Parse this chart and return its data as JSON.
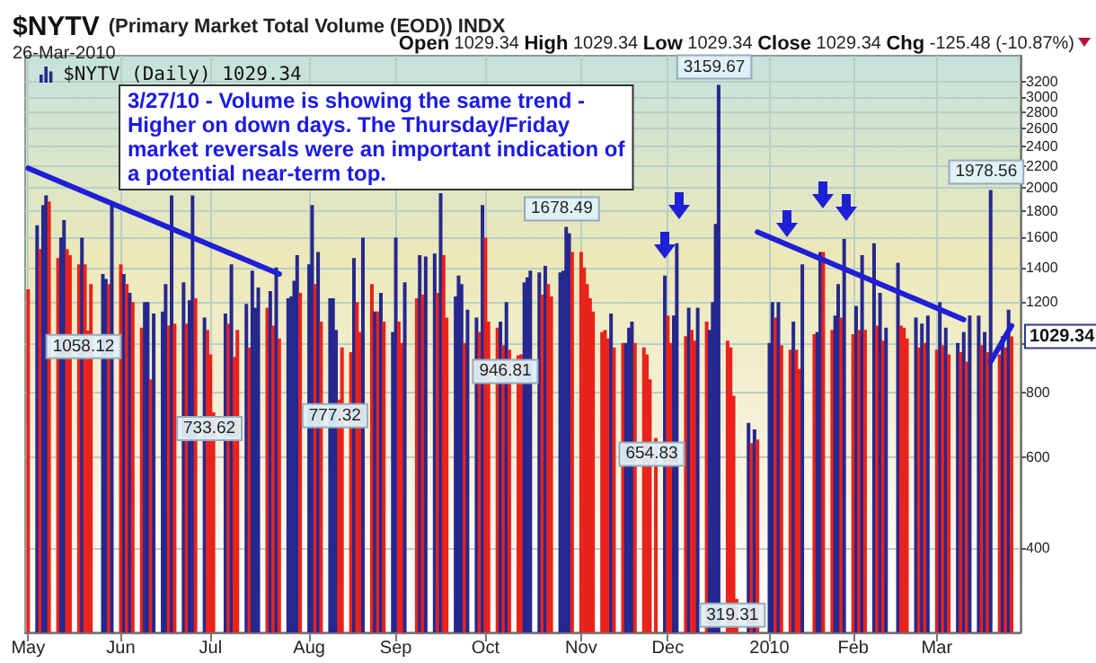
{
  "chart_data": {
    "type": "bar",
    "title": "$NYTV (Primary Market Total Volume (EOD)) INDX",
    "subtitle": "26-Mar-2010",
    "log": true,
    "grid": true,
    "legend": "top left",
    "marker": "none",
    "line_style": "solid",
    "xlim": [
      "2009-04-30",
      "2010-03-29"
    ],
    "xticks": [
      {
        "value": "2009-05-01",
        "label": "May"
      },
      {
        "value": "2009-06-01",
        "label": "Jun"
      },
      {
        "value": "2009-07-01",
        "label": "Jul"
      },
      {
        "value": "2009-08-03",
        "label": "Aug"
      },
      {
        "value": "2009-09-01",
        "label": "Sep"
      },
      {
        "value": "2009-10-01",
        "label": "Oct"
      },
      {
        "value": "2009-11-02",
        "label": "Nov"
      },
      {
        "value": "2009-12-01",
        "label": "Dec"
      },
      {
        "value": "2010-01-04",
        "label": "2010"
      },
      {
        "value": "2010-02-01",
        "label": "Feb"
      },
      {
        "value": "2010-03-01",
        "label": "Mar"
      }
    ],
    "ylim": [
      275,
      3600
    ],
    "yticks": [
      400,
      600,
      800,
      {
        "value": 1000,
        "label": null
      },
      1200,
      1400,
      1600,
      1800,
      2000,
      2200,
      2400,
      2600,
      2800,
      3000,
      3200
    ],
    "x": [
      "2009-05-01",
      "2009-05-04",
      "2009-05-05",
      "2009-05-06",
      "2009-05-07",
      "2009-05-08",
      "2009-05-11",
      "2009-05-12",
      "2009-05-13",
      "2009-05-14",
      "2009-05-15",
      "2009-05-18",
      "2009-05-19",
      "2009-05-20",
      "2009-05-21",
      "2009-05-22",
      "2009-05-26",
      "2009-05-27",
      "2009-05-28",
      "2009-05-29",
      "2009-06-01",
      "2009-06-02",
      "2009-06-03",
      "2009-06-04",
      "2009-06-05",
      "2009-06-08",
      "2009-06-09",
      "2009-06-10",
      "2009-06-11",
      "2009-06-12",
      "2009-06-15",
      "2009-06-16",
      "2009-06-17",
      "2009-06-18",
      "2009-06-19",
      "2009-06-22",
      "2009-06-23",
      "2009-06-24",
      "2009-06-25",
      "2009-06-26",
      "2009-06-29",
      "2009-06-30",
      "2009-07-01",
      "2009-07-02",
      "2009-07-06",
      "2009-07-07",
      "2009-07-08",
      "2009-07-09",
      "2009-07-10",
      "2009-07-13",
      "2009-07-14",
      "2009-07-15",
      "2009-07-16",
      "2009-07-17",
      "2009-07-20",
      "2009-07-21",
      "2009-07-22",
      "2009-07-23",
      "2009-07-24",
      "2009-07-27",
      "2009-07-28",
      "2009-07-29",
      "2009-07-30",
      "2009-07-31",
      "2009-08-03",
      "2009-08-04",
      "2009-08-05",
      "2009-08-06",
      "2009-08-07",
      "2009-08-10",
      "2009-08-11",
      "2009-08-12",
      "2009-08-13",
      "2009-08-14",
      "2009-08-17",
      "2009-08-18",
      "2009-08-19",
      "2009-08-20",
      "2009-08-21",
      "2009-08-24",
      "2009-08-25",
      "2009-08-26",
      "2009-08-27",
      "2009-08-28",
      "2009-08-31",
      "2009-09-01",
      "2009-09-02",
      "2009-09-03",
      "2009-09-04",
      "2009-09-08",
      "2009-09-09",
      "2009-09-10",
      "2009-09-11",
      "2009-09-14",
      "2009-09-15",
      "2009-09-16",
      "2009-09-17",
      "2009-09-18",
      "2009-09-21",
      "2009-09-22",
      "2009-09-23",
      "2009-09-24",
      "2009-09-25",
      "2009-09-28",
      "2009-09-29",
      "2009-09-30",
      "2009-10-01",
      "2009-10-02",
      "2009-10-05",
      "2009-10-06",
      "2009-10-07",
      "2009-10-08",
      "2009-10-09",
      "2009-10-12",
      "2009-10-13",
      "2009-10-14",
      "2009-10-15",
      "2009-10-16",
      "2009-10-19",
      "2009-10-20",
      "2009-10-21",
      "2009-10-22",
      "2009-10-23",
      "2009-10-26",
      "2009-10-27",
      "2009-10-28",
      "2009-10-29",
      "2009-10-30",
      "2009-11-02",
      "2009-11-03",
      "2009-11-04",
      "2009-11-05",
      "2009-11-06",
      "2009-11-09",
      "2009-11-10",
      "2009-11-11",
      "2009-11-12",
      "2009-11-13",
      "2009-11-16",
      "2009-11-17",
      "2009-11-18",
      "2009-11-19",
      "2009-11-20",
      "2009-11-23",
      "2009-11-24",
      "2009-11-25",
      "2009-11-27",
      "2009-11-30",
      "2009-12-01",
      "2009-12-02",
      "2009-12-03",
      "2009-12-04",
      "2009-12-07",
      "2009-12-08",
      "2009-12-09",
      "2009-12-10",
      "2009-12-11",
      "2009-12-14",
      "2009-12-15",
      "2009-12-16",
      "2009-12-17",
      "2009-12-18",
      "2009-12-21",
      "2009-12-22",
      "2009-12-23",
      "2009-12-24",
      "2009-12-28",
      "2009-12-29",
      "2009-12-30",
      "2009-12-31",
      "2010-01-04",
      "2010-01-05",
      "2010-01-06",
      "2010-01-07",
      "2010-01-08",
      "2010-01-11",
      "2010-01-12",
      "2010-01-13",
      "2010-01-14",
      "2010-01-15",
      "2010-01-19",
      "2010-01-20",
      "2010-01-21",
      "2010-01-22",
      "2010-01-25",
      "2010-01-26",
      "2010-01-27",
      "2010-01-28",
      "2010-01-29",
      "2010-02-01",
      "2010-02-02",
      "2010-02-03",
      "2010-02-04",
      "2010-02-05",
      "2010-02-08",
      "2010-02-09",
      "2010-02-10",
      "2010-02-11",
      "2010-02-12",
      "2010-02-16",
      "2010-02-17",
      "2010-02-18",
      "2010-02-19",
      "2010-02-22",
      "2010-02-23",
      "2010-02-24",
      "2010-02-25",
      "2010-02-26",
      "2010-03-01",
      "2010-03-02",
      "2010-03-03",
      "2010-03-04",
      "2010-03-05",
      "2010-03-08",
      "2010-03-09",
      "2010-03-10",
      "2010-03-11",
      "2010-03-12",
      "2010-03-15",
      "2010-03-16",
      "2010-03-17",
      "2010-03-18",
      "2010-03-19",
      "2010-03-22",
      "2010-03-23",
      "2010-03-24",
      "2010-03-25",
      "2010-03-26"
    ],
    "series": [
      {
        "name": "$NYTV (Daily) 1029.34",
        "color": "#26288f",
        "values": [
          1270,
          1690,
          1520,
          1850,
          1930,
          1880,
          1460,
          1600,
          1730,
          1520,
          1480,
          1420,
          1600,
          1420,
          1058.12,
          1300,
          1360,
          1330,
          1300,
          1850,
          1420,
          1360,
          1300,
          1250,
          1200,
          1070,
          1200,
          1200,
          850,
          1140,
          1150,
          1300,
          1080,
          1930,
          1090,
          1310,
          1090,
          1210,
          1930,
          1220,
          1120,
          1060,
          950,
          733.62,
          1140,
          1090,
          1420,
          940,
          1060,
          1190,
          980,
          1380,
          1170,
          1280,
          1170,
          1260,
          1080,
          1400,
          1020,
          1220,
          1230,
          1320,
          1480,
          1250,
          1420,
          1850,
          1300,
          1500,
          1100,
          1220,
          1220,
          1060,
          777.32,
          980,
          960,
          1460,
          1200,
          1050,
          1600,
          1300,
          1150,
          1150,
          1250,
          1100,
          1050,
          1600,
          1100,
          1000,
          1310,
          1220,
          1480,
          1240,
          1470,
          1490,
          1250,
          1950,
          1480,
          1120,
          1230,
          1350,
          1300,
          1000,
          1160,
          1120,
          1050,
          1850,
          1600,
          1100,
          1070,
          1100,
          990,
          1200,
          970,
          946.81,
          950,
          1310,
          1340,
          1380,
          1370,
          1240,
          1410,
          1300,
          1230,
          1370,
          1380,
          1678.49,
          1630,
          1500,
          1500,
          1400,
          1300,
          1220,
          1150,
          1050,
          1060,
          1020,
          1140,
          980,
          1000,
          1000,
          1070,
          1100,
          1000,
          980,
          950,
          850,
          654.83,
          1350,
          1130,
          1000,
          1130,
          1560,
          1030,
          1170,
          1060,
          1010,
          1170,
          1100,
          1060,
          1200,
          1700,
          3159.67,
          1010,
          980,
          790,
          319.31,
          700,
          640,
          680,
          650,
          1000,
          1200,
          1120,
          1200,
          990,
          970,
          1100,
          970,
          890,
          1420,
          1040,
          1050,
          1500,
          1500,
          1060,
          1130,
          1300,
          1120,
          1590,
          1040,
          1180,
          1060,
          1480,
          1060,
          1560,
          1080,
          1250,
          1010,
          1070,
          1430,
          1080,
          1070,
          1020,
          1120,
          980,
          1090,
          1000,
          1130,
          970,
          1200,
          990,
          1070,
          950,
          1000,
          960,
          1050,
          920,
          1130,
          1130,
          990,
          1050,
          960,
          1978.56,
          950,
          1030,
          980,
          1160,
          1029.34
        ],
        "colors": [
          "#e8231c",
          "#26288f",
          "#e8231c",
          "#26288f",
          "#26288f",
          "#e8231c",
          "#e8231c",
          "#26288f",
          "#26288f",
          "#e8231c",
          "#e8231c",
          "#e8231c",
          "#26288f",
          "#e8231c",
          "#e8231c",
          "#e8231c",
          "#26288f",
          "#26288f",
          "#e8231c",
          "#26288f",
          "#e8231c",
          "#26288f",
          "#e8231c",
          "#26288f",
          "#e8231c",
          "#e8231c",
          "#26288f",
          "#26288f",
          "#e8231c",
          "#26288f",
          "#26288f",
          "#26288f",
          "#e8231c",
          "#26288f",
          "#e8231c",
          "#26288f",
          "#e8231c",
          "#26288f",
          "#26288f",
          "#e8231c",
          "#26288f",
          "#e8231c",
          "#e8231c",
          "#e8231c",
          "#26288f",
          "#e8231c",
          "#26288f",
          "#e8231c",
          "#e8231c",
          "#26288f",
          "#e8231c",
          "#26288f",
          "#26288f",
          "#26288f",
          "#e8231c",
          "#26288f",
          "#e8231c",
          "#26288f",
          "#e8231c",
          "#26288f",
          "#26288f",
          "#26288f",
          "#26288f",
          "#e8231c",
          "#26288f",
          "#26288f",
          "#e8231c",
          "#26288f",
          "#e8231c",
          "#26288f",
          "#26288f",
          "#26288f",
          "#e8231c",
          "#e8231c",
          "#e8231c",
          "#26288f",
          "#e8231c",
          "#e8231c",
          "#26288f",
          "#e8231c",
          "#26288f",
          "#e8231c",
          "#26288f",
          "#e8231c",
          "#26288f",
          "#26288f",
          "#e8231c",
          "#e8231c",
          "#26288f",
          "#e8231c",
          "#26288f",
          "#e8231c",
          "#26288f",
          "#26288f",
          "#e8231c",
          "#26288f",
          "#e8231c",
          "#e8231c",
          "#26288f",
          "#26288f",
          "#26288f",
          "#e8231c",
          "#26288f",
          "#26288f",
          "#e8231c",
          "#26288f",
          "#e8231c",
          "#e8231c",
          "#e8231c",
          "#26288f",
          "#e8231c",
          "#26288f",
          "#e8231c",
          "#e8231c",
          "#e8231c",
          "#26288f",
          "#26288f",
          "#26288f",
          "#26288f",
          "#e8231c",
          "#26288f",
          "#e8231c",
          "#e8231c",
          "#26288f",
          "#26288f",
          "#26288f",
          "#26288f",
          "#e8231c",
          "#e8231c",
          "#e8231c",
          "#e8231c",
          "#e8231c",
          "#e8231c",
          "#e8231c",
          "#e8231c",
          "#e8231c",
          "#26288f",
          "#e8231c",
          "#e8231c",
          "#26288f",
          "#26288f",
          "#26288f",
          "#e8231c",
          "#e8231c",
          "#e8231c",
          "#e8231c",
          "#e8231c",
          "#26288f",
          "#e8231c",
          "#e8231c",
          "#26288f",
          "#26288f",
          "#e8231c",
          "#26288f",
          "#e8231c",
          "#e8231c",
          "#26288f",
          "#e8231c",
          "#26288f",
          "#26288f",
          "#26288f",
          "#26288f",
          "#e8231c",
          "#e8231c",
          "#e8231c",
          "#e8231c",
          "#26288f",
          "#e8231c",
          "#26288f",
          "#e8231c",
          "#26288f",
          "#26288f",
          "#e8231c",
          "#26288f",
          "#e8231c",
          "#e8231c",
          "#26288f",
          "#e8231c",
          "#e8231c",
          "#26288f",
          "#e8231c",
          "#26288f",
          "#26288f",
          "#e8231c",
          "#e8231c",
          "#26288f",
          "#26288f",
          "#e8231c",
          "#26288f",
          "#e8231c",
          "#26288f",
          "#e8231c",
          "#26288f",
          "#e8231c",
          "#26288f",
          "#e8231c",
          "#26288f",
          "#e8231c",
          "#26288f",
          "#26288f",
          "#e8231c",
          "#e8231c",
          "#e8231c",
          "#26288f",
          "#e8231c",
          "#26288f",
          "#e8231c",
          "#26288f",
          "#e8231c",
          "#26288f",
          "#e8231c",
          "#26288f",
          "#e8231c",
          "#26288f",
          "#e8231c",
          "#26288f",
          "#e8231c",
          "#26288f",
          "#26288f",
          "#e8231c",
          "#26288f",
          "#e8231c",
          "#26288f",
          "#e8231c",
          "#26288f",
          "#e8231c",
          "#26288f",
          "#e8231c"
        ]
      },
      {
        "type": "line",
        "color": "#1f1fd6",
        "x": [
          "2009-05-01",
          "2009-07-24"
        ],
        "values": [
          2180,
          1360
        ]
      },
      {
        "type": "line",
        "color": "#1f1fd6",
        "x": [
          "2009-12-31",
          "2010-03-10"
        ],
        "values": [
          1640,
          1110
        ]
      },
      {
        "type": "line",
        "color": "#1f1fd6",
        "x": [
          "2010-03-19",
          "2010-03-26"
        ],
        "values": [
          920,
          1080
        ]
      }
    ],
    "annotations": [
      "Open 1029.34 High 1029.34 Low 1029.34 Close 1029.34 Chg -125.48 (-10.87%)",
      "3/27/10 - Volume is showing the same trend -\nHigher on down days. The Thursday/Friday\nmarket reversals were an important indication of\na potential near-term top.",
      {
        "text": "1058.12",
        "x": "2009-05-21",
        "y": 1058.12
      },
      {
        "text": "733.62",
        "x": "2009-07-02",
        "y": 733.62
      },
      {
        "text": "777.32",
        "x": "2009-08-13",
        "y": 777.32
      },
      {
        "text": "946.81",
        "x": "2009-10-09",
        "y": 946.81
      },
      {
        "text": "1678.49",
        "x": "2009-10-28",
        "y": 1678.49
      },
      {
        "text": "654.83",
        "x": "2009-11-27",
        "y": 654.83
      },
      {
        "text": "3159.67",
        "x": "2009-12-18",
        "y": 3159.67
      },
      {
        "text": "319.31",
        "x": "2009-12-24",
        "y": 319.31
      },
      {
        "text": "1978.56",
        "x": "2010-03-19",
        "y": 1978.56
      },
      "1029.34"
    ]
  }
}
